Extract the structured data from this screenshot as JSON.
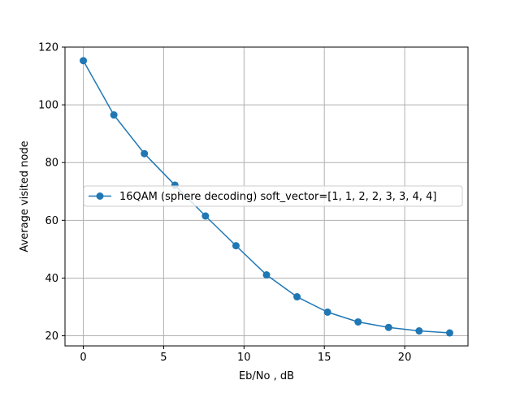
{
  "chart_data": {
    "type": "line",
    "title": "",
    "xlabel": "Eb/No , dB",
    "ylabel": "Average visited node",
    "xlim": [
      -1.14,
      23.94
    ],
    "ylim": [
      16.5,
      120
    ],
    "xticks": [
      0,
      5,
      10,
      15,
      20
    ],
    "yticks": [
      20,
      40,
      60,
      80,
      100,
      120
    ],
    "grid": true,
    "legend_position": "center-right",
    "series": [
      {
        "name": "16QAM (sphere decoding) soft_vector=[1, 1, 2, 2, 3, 3, 4, 4]",
        "color": "#1f77b4",
        "marker": "circle",
        "x": [
          0,
          1.9,
          3.8,
          5.7,
          7.6,
          9.5,
          11.4,
          13.3,
          15.2,
          17.1,
          19.0,
          20.9,
          22.8
        ],
        "y": [
          115.3,
          96.5,
          83.1,
          72.2,
          61.5,
          51.2,
          41.1,
          33.5,
          28.2,
          24.8,
          22.9,
          21.7,
          21.0
        ]
      }
    ]
  }
}
